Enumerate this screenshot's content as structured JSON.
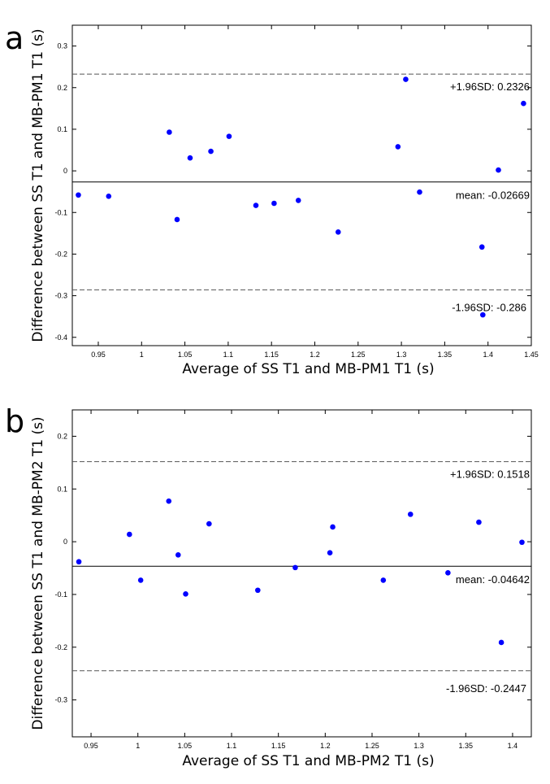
{
  "chart_data": [
    {
      "type": "scatter",
      "panel_label": "a",
      "xlabel": "Average of SS T1 and MB-PM1 T1 (s)",
      "ylabel": "Difference between SS T1 and MB-PM1 T1 (s)",
      "xlim": [
        0.92,
        1.45
      ],
      "ylim": [
        -0.42,
        0.35
      ],
      "xticks": [
        0.95,
        1,
        1.05,
        1.1,
        1.15,
        1.2,
        1.25,
        1.3,
        1.35,
        1.4,
        1.45
      ],
      "xtick_labels": [
        "0.95",
        "1",
        "1.05",
        "1.1",
        "1.15",
        "1.2",
        "1.25",
        "1.3",
        "1.35",
        "1.4",
        "1.45"
      ],
      "yticks": [
        -0.4,
        -0.3,
        -0.2,
        -0.1,
        0,
        0.1,
        0.2,
        0.3
      ],
      "ytick_labels": [
        "-0.4",
        "-0.3",
        "-0.2",
        "-0.1",
        "0",
        "0.1",
        "0.2",
        "0.3"
      ],
      "x": [
        0.927,
        0.962,
        1.032,
        1.041,
        1.056,
        1.08,
        1.101,
        1.132,
        1.153,
        1.181,
        1.227,
        1.296,
        1.305,
        1.321,
        1.393,
        1.394,
        1.412,
        1.441
      ],
      "y": [
        -0.058,
        -0.061,
        0.093,
        -0.117,
        0.031,
        0.047,
        0.083,
        -0.083,
        -0.078,
        -0.071,
        -0.147,
        0.058,
        0.22,
        -0.051,
        -0.183,
        -0.346,
        0.002,
        0.162
      ],
      "mean": -0.02669,
      "upper_loa": 0.2326,
      "lower_loa": -0.286,
      "upper_label": "+1.96SD: 0.2326",
      "mean_label": "mean: -0.02669",
      "lower_label": "-1.96SD: -0.286",
      "point_color": "#0000ff",
      "line_color": "#000000",
      "dash_color": "#555555"
    },
    {
      "type": "scatter",
      "panel_label": "b",
      "xlabel": "Average of SS T1 and MB-PM2 T1 (s)",
      "ylabel": "Difference between SS T1 and MB-PM2 T1 (s)",
      "xlim": [
        0.93,
        1.42
      ],
      "ylim": [
        -0.37,
        0.25
      ],
      "xticks": [
        0.95,
        1,
        1.05,
        1.1,
        1.15,
        1.2,
        1.25,
        1.3,
        1.35,
        1.4
      ],
      "xtick_labels": [
        "0.95",
        "1",
        "1.05",
        "1.1",
        "1.15",
        "1.2",
        "1.25",
        "1.3",
        "1.35",
        "1.4"
      ],
      "yticks": [
        -0.3,
        -0.2,
        -0.1,
        0,
        0.1,
        0.2
      ],
      "ytick_labels": [
        "-0.3",
        "-0.2",
        "-0.1",
        "0",
        "0.1",
        "0.2"
      ],
      "x": [
        0.937,
        0.991,
        1.003,
        1.033,
        1.043,
        1.051,
        1.076,
        1.128,
        1.168,
        1.205,
        1.208,
        1.262,
        1.291,
        1.331,
        1.364,
        1.388,
        1.41
      ],
      "y": [
        -0.038,
        0.014,
        -0.073,
        0.077,
        -0.025,
        -0.099,
        0.034,
        -0.092,
        -0.049,
        -0.021,
        0.028,
        -0.073,
        0.052,
        -0.059,
        0.037,
        -0.191,
        -0.001
      ],
      "mean": -0.04642,
      "upper_loa": 0.1518,
      "lower_loa": -0.2447,
      "upper_label": "+1.96SD: 0.1518",
      "mean_label": "mean: -0.04642",
      "lower_label": "-1.96SD: -0.2447",
      "point_color": "#0000ff",
      "line_color": "#000000",
      "dash_color": "#555555"
    }
  ]
}
